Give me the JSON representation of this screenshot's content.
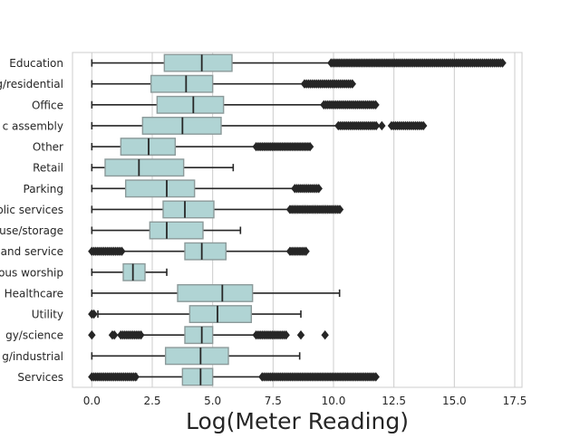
{
  "chart_data": {
    "type": "boxplot",
    "orientation": "horizontal",
    "xlabel": "Log(Meter Reading)",
    "ylabel": "",
    "title": "",
    "xlim": [
      -0.8,
      17.8
    ],
    "xticks": [
      0.0,
      2.5,
      5.0,
      7.5,
      10.0,
      12.5,
      15.0,
      17.5
    ],
    "xtick_labels": [
      "0.0",
      "2.5",
      "5.0",
      "7.5",
      "10.0",
      "12.5",
      "15.0",
      "17.5"
    ],
    "grid": "vertical",
    "box_color": "#b0d4d4",
    "edge_color": "#8c9a9a",
    "line_color": "#262626",
    "categories": [
      "Education",
      "g/residential",
      "Office",
      "c assembly",
      "Other",
      "Retail",
      "Parking",
      "blic services",
      "use/storage",
      "and service",
      "ous worship",
      "Healthcare",
      "Utility",
      "gy/science",
      "g/industrial",
      "Services"
    ],
    "boxes": [
      {
        "whislo": 0.0,
        "q1": 3.0,
        "med": 4.55,
        "q3": 5.8,
        "whishi": 9.9,
        "fliers": [
          [
            9.9,
            17.0
          ]
        ]
      },
      {
        "whislo": 0.0,
        "q1": 2.45,
        "med": 3.9,
        "q3": 5.0,
        "whishi": 8.8,
        "fliers": [
          [
            8.8,
            10.8
          ]
        ]
      },
      {
        "whislo": 0.0,
        "q1": 2.7,
        "med": 4.2,
        "q3": 5.45,
        "whishi": 9.6,
        "fliers": [
          [
            9.6,
            11.8
          ]
        ]
      },
      {
        "whislo": 0.0,
        "q1": 2.1,
        "med": 3.75,
        "q3": 5.35,
        "whishi": 10.2,
        "fliers": [
          [
            10.2,
            11.8
          ],
          [
            12.0,
            12.0
          ],
          [
            12.4,
            13.8
          ]
        ]
      },
      {
        "whislo": 0.0,
        "q1": 1.2,
        "med": 2.35,
        "q3": 3.45,
        "whishi": 6.8,
        "fliers": [
          [
            6.8,
            9.1
          ]
        ]
      },
      {
        "whislo": 0.0,
        "q1": 0.55,
        "med": 1.95,
        "q3": 3.8,
        "whishi": 5.85,
        "fliers": []
      },
      {
        "whislo": 0.0,
        "q1": 1.4,
        "med": 3.1,
        "q3": 4.25,
        "whishi": 8.4,
        "fliers": [
          [
            8.4,
            9.4
          ]
        ]
      },
      {
        "whislo": 0.0,
        "q1": 2.95,
        "med": 3.85,
        "q3": 5.05,
        "whishi": 8.2,
        "fliers": [
          [
            8.2,
            10.3
          ]
        ]
      },
      {
        "whislo": 0.0,
        "q1": 2.4,
        "med": 3.1,
        "q3": 4.6,
        "whishi": 6.15,
        "fliers": []
      },
      {
        "whislo": 1.25,
        "q1": 3.85,
        "med": 4.55,
        "q3": 5.55,
        "whishi": 8.2,
        "fliers": [
          [
            0.0,
            1.25
          ],
          [
            8.2,
            8.9
          ]
        ]
      },
      {
        "whislo": 0.0,
        "q1": 1.3,
        "med": 1.7,
        "q3": 2.2,
        "whishi": 3.1,
        "fliers": []
      },
      {
        "whislo": 0.0,
        "q1": 3.55,
        "med": 5.4,
        "q3": 6.65,
        "whishi": 10.25,
        "fliers": []
      },
      {
        "whislo": 0.25,
        "q1": 4.05,
        "med": 5.2,
        "q3": 6.6,
        "whishi": 8.65,
        "fliers": [
          [
            0.0,
            0.15
          ]
        ]
      },
      {
        "whislo": 2.05,
        "q1": 3.85,
        "med": 4.55,
        "q3": 5.0,
        "whishi": 6.8,
        "fliers": [
          [
            0.0,
            0.0
          ],
          [
            0.85,
            0.95
          ],
          [
            1.2,
            2.05
          ],
          [
            6.8,
            8.1
          ],
          [
            8.65,
            8.65
          ],
          [
            9.65,
            9.65
          ]
        ]
      },
      {
        "whislo": 0.0,
        "q1": 3.05,
        "med": 4.5,
        "q3": 5.65,
        "whishi": 8.6,
        "fliers": []
      },
      {
        "whislo": 1.85,
        "q1": 3.75,
        "med": 4.5,
        "q3": 5.0,
        "whishi": 7.05,
        "fliers": [
          [
            0.0,
            1.85
          ],
          [
            7.05,
            11.8
          ]
        ]
      }
    ]
  }
}
